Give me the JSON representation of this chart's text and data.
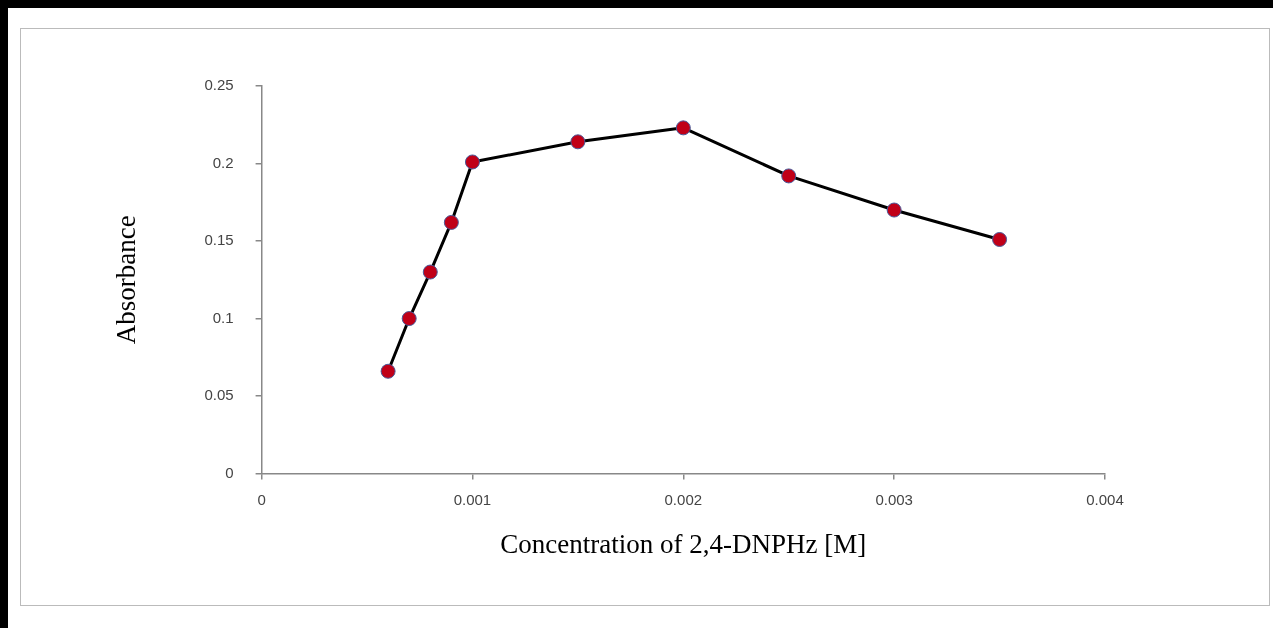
{
  "chart_data": {
    "type": "line",
    "xlabel": "Concentration of 2,4-DNPHz [M]",
    "ylabel": "Absorbance",
    "x": [
      0.0006,
      0.0007,
      0.0008,
      0.0009,
      0.001,
      0.0015,
      0.002,
      0.0025,
      0.003,
      0.0035
    ],
    "series": [
      {
        "color": "#000000",
        "values": [
          0.066,
          0.1,
          0.13,
          0.162,
          0.201,
          0.214,
          0.223,
          0.192,
          0.17,
          0.151
        ]
      }
    ],
    "marker": "circle",
    "line_style": "solid",
    "grid": false,
    "legend": false,
    "xlim": [
      0,
      0.004
    ],
    "xticks": [
      0,
      0.001,
      0.002,
      0.003,
      0.004
    ],
    "ylim": [
      0,
      0.25
    ],
    "yticks": [
      0,
      0.05,
      0.1,
      0.15,
      0.2,
      0.25
    ]
  }
}
